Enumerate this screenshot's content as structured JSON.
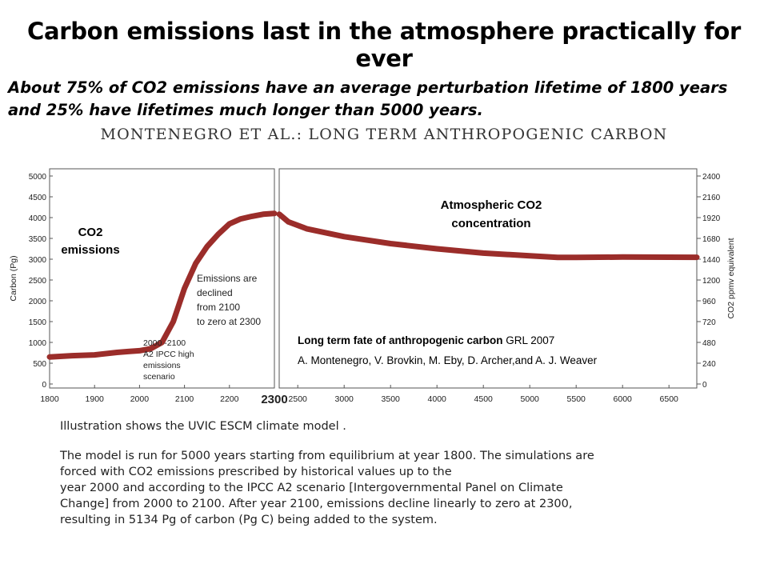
{
  "slide": {
    "title": "Carbon emissions last in the atmosphere practically for ever",
    "subtitle_line1": "About 75% of CO2 emissions have an average perturbation lifetime of 1800 years",
    "subtitle_line2": "and 25% have lifetimes much longer than 5000 years.",
    "paper_header": "MONTENEGRO ET AL.: LONG TERM ANTHROPOGENIC CARBON",
    "description1": "Illustration shows the UVIC ESCM climate model .",
    "description2_lines": [
      "The model is run for 5000 years starting from equilibrium at year 1800. The simulations are",
      "forced with CO2 emissions prescribed by historical values up to the",
      "year 2000  and according to the IPCC A2 scenario [Intergovernmental Panel on Climate",
      "Change] from 2000 to 2100. After year 2100, emissions decline linearly to zero at 2300,",
      "resulting in 5134 Pg of carbon (Pg C) being added to the system."
    ]
  },
  "chart_data": [
    {
      "type": "line",
      "label": "CO2 emissions",
      "ylabel": "Carbon (Pg)",
      "xlim": [
        1800,
        2300
      ],
      "ylim": [
        0,
        5000
      ],
      "x_ticks": [
        1800,
        1900,
        2000,
        2100,
        2200,
        2300
      ],
      "y_ticks": [
        0,
        500,
        1000,
        1500,
        2000,
        2500,
        3000,
        3500,
        4000,
        4500,
        5000
      ],
      "line_color": "#9b2d2a",
      "annotations": [
        {
          "lines": [
            "Emissions are",
            "declined",
            "from 2100",
            "to zero at 2300"
          ]
        },
        {
          "lines": [
            "2000 -2100",
            "A2 IPCC high",
            "emissions",
            "scenario"
          ]
        }
      ],
      "series": [
        {
          "x": [
            1800,
            1850,
            1900,
            1950,
            1975,
            2000,
            2025,
            2050,
            2075,
            2100,
            2125,
            2150,
            2175,
            2200,
            2225,
            2250,
            2275,
            2300
          ],
          "y": [
            650,
            680,
            700,
            760,
            780,
            800,
            850,
            1000,
            1500,
            2300,
            2900,
            3300,
            3600,
            3850,
            3970,
            4030,
            4080,
            4100
          ]
        }
      ]
    },
    {
      "type": "line",
      "label": "Atmospheric CO2 concentration",
      "ylabel": "CO2 ppmv equivalent",
      "xlim": [
        2300,
        6800
      ],
      "ylim": [
        0,
        2400
      ],
      "x_ticks": [
        2500,
        3000,
        3500,
        4000,
        4500,
        5000,
        5500,
        6000,
        6500
      ],
      "y_ticks": [
        0,
        240,
        480,
        720,
        960,
        1200,
        1440,
        1680,
        1920,
        2160,
        2400
      ],
      "line_color": "#9b2d2a",
      "series": [
        {
          "x": [
            2300,
            2400,
            2600,
            3000,
            3500,
            4000,
            4500,
            5000,
            5300,
            5500,
            6000,
            6500,
            6800
          ],
          "y": [
            1960,
            1870,
            1790,
            1700,
            1620,
            1560,
            1510,
            1480,
            1460,
            1460,
            1465,
            1463,
            1462
          ]
        }
      ]
    }
  ],
  "citation": {
    "title": "Long term fate of anthropogenic carbon",
    "journal": " GRL 2007",
    "authors": "A. Montenegro, V. Brovkin, M. Eby, D.  Archer,and A. J. Weaver"
  }
}
